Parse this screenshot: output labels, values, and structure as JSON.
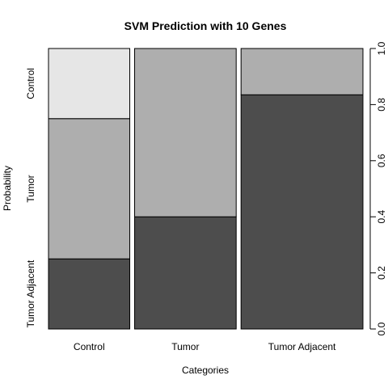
{
  "chart_data": {
    "type": "bar",
    "subtype": "spineplot",
    "title": "SVM Prediction with 10 Genes",
    "xlabel": "Categories",
    "ylabel": "Probability",
    "categories": [
      "Control",
      "Tumor",
      "Tumor Adjacent"
    ],
    "x_weights": [
      1,
      1.25,
      1.5
    ],
    "series": [
      {
        "name": "Tumor Adjacent",
        "color": "#4d4d4d",
        "values": [
          0.25,
          0.4,
          0.835
        ]
      },
      {
        "name": "Tumor",
        "color": "#aeaeae",
        "values": [
          0.5,
          0.6,
          0.165
        ]
      },
      {
        "name": "Control",
        "color": "#e6e6e6",
        "values": [
          0.25,
          0.0,
          0.0
        ]
      }
    ],
    "ylim": [
      0,
      1
    ],
    "y_ticks": [
      "0.0",
      "0.2",
      "0.4",
      "0.6",
      "0.8",
      "1.0"
    ],
    "y_tick_values": [
      0,
      0.2,
      0.4,
      0.6,
      0.8,
      1.0
    ],
    "left_axis_labels": [
      "Tumor Adjacent",
      "Tumor",
      "Control"
    ],
    "y_axis_position": "right",
    "grid": false,
    "legend": "none"
  }
}
